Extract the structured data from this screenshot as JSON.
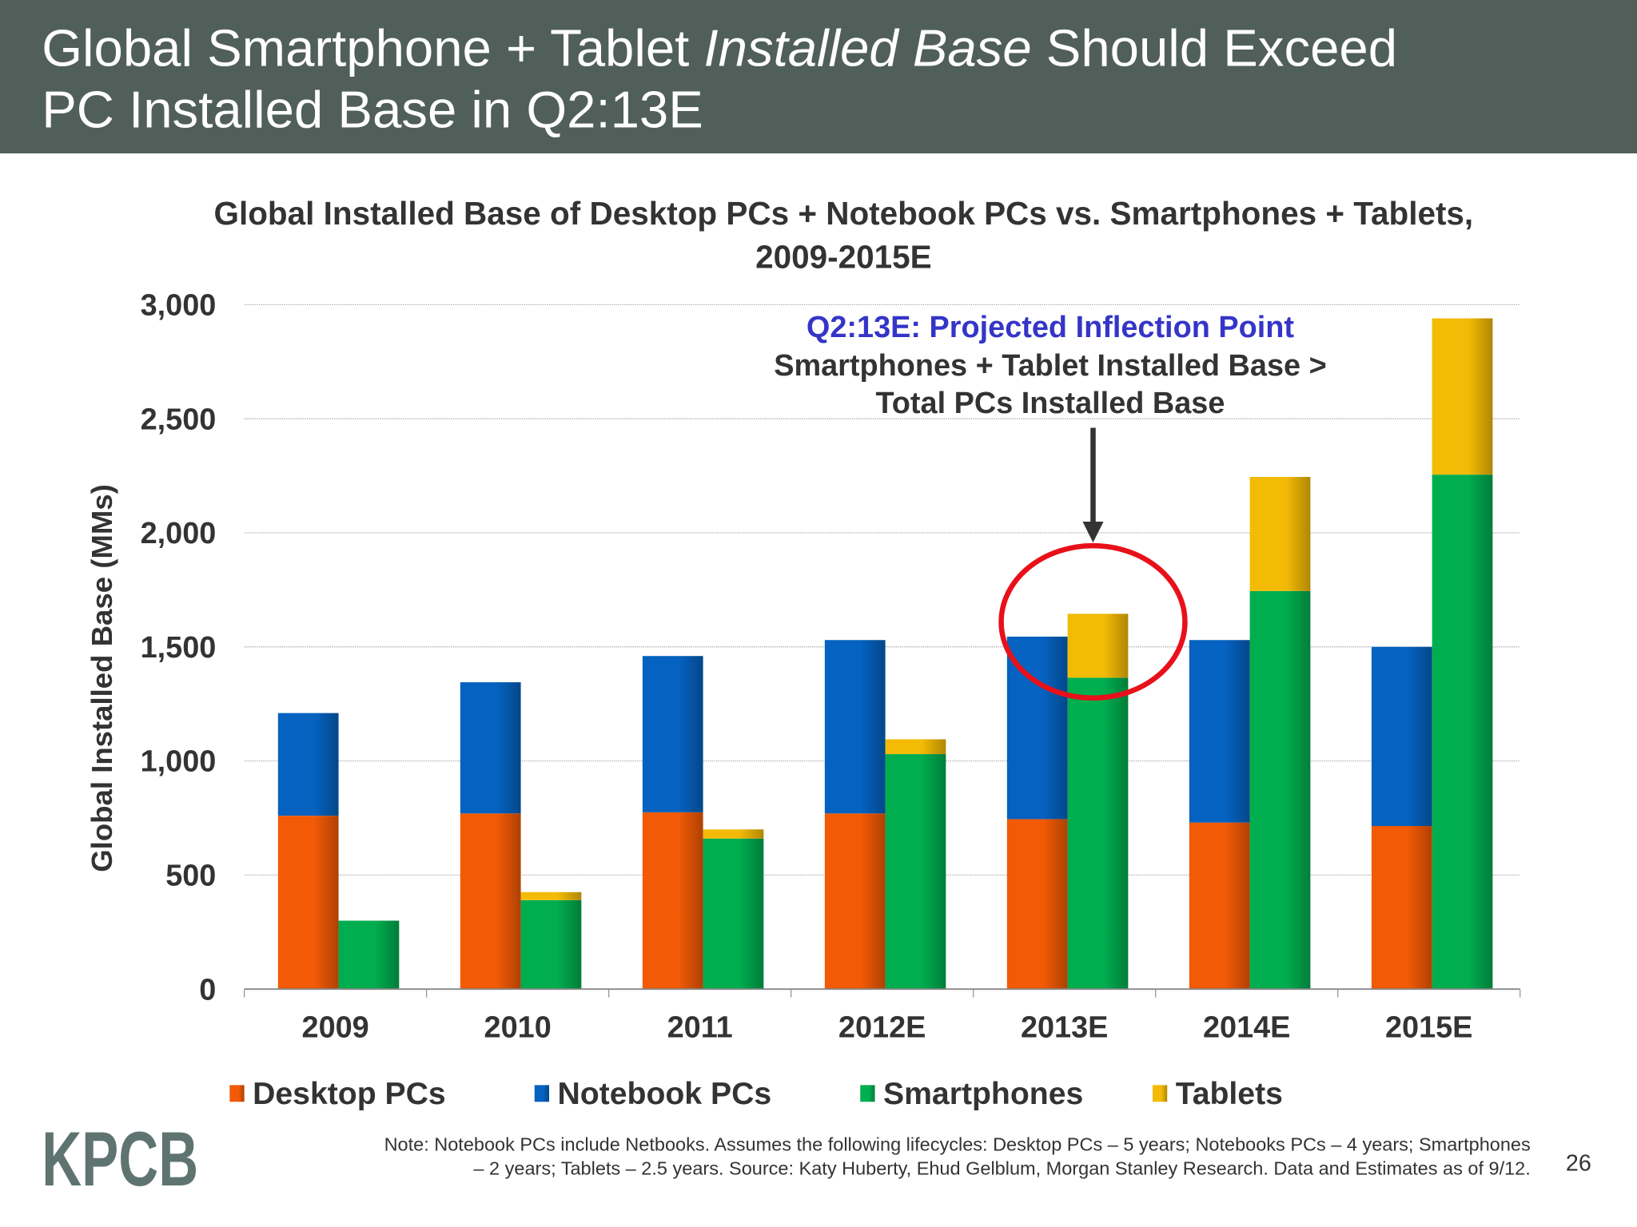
{
  "slide": {
    "title_line1_a": "Global Smartphone + Tablet ",
    "title_line1_b": "Installed Base",
    "title_line1_c": " Should Exceed",
    "title_line2": "PC Installed Base in Q2:13E",
    "logo": "KPCB",
    "page_number": "26",
    "note_line1": "Note: Notebook PCs include Netbooks. Assumes the following lifecycles: Desktop PCs – 5 years; Notebooks PCs – 4 years; Smartphones",
    "note_line2": "– 2 years; Tablets – 2.5 years. Source: Katy Huberty, Ehud Gelblum, Morgan Stanley Research. Data and Estimates as of 9/12.",
    "colors": {
      "title_bar": "#515f5b",
      "logo": "#5f7470",
      "annotation_highlight": "#3535c8",
      "circle": "#e8101a"
    }
  },
  "chart_data": {
    "type": "bar",
    "stacked_groups": true,
    "title_line1": "Global Installed Base of Desktop PCs + Notebook PCs vs. Smartphones + Tablets,",
    "title_line2": "2009-2015E",
    "ylabel": "Global Installed Base (MMs)",
    "xlabel": "",
    "ylim": [
      0,
      3000
    ],
    "yticks": [
      0,
      500,
      1000,
      1500,
      2000,
      2500,
      3000
    ],
    "ytick_labels": [
      "0",
      "500",
      "1,000",
      "1,500",
      "2,000",
      "2,500",
      "3,000"
    ],
    "grid": true,
    "legend_position": "bottom",
    "categories": [
      "2009",
      "2010",
      "2011",
      "2012E",
      "2013E",
      "2014E",
      "2015E"
    ],
    "stacks": [
      {
        "name": "PCs",
        "series": [
          "Desktop PCs",
          "Notebook PCs"
        ]
      },
      {
        "name": "Smartphones + Tablets",
        "series": [
          "Smartphones",
          "Tablets"
        ]
      }
    ],
    "series": [
      {
        "name": "Desktop PCs",
        "color": "#f25a05",
        "values": [
          760,
          770,
          775,
          770,
          745,
          730,
          715
        ]
      },
      {
        "name": "Notebook PCs",
        "color": "#0562c0",
        "values": [
          450,
          575,
          685,
          760,
          800,
          800,
          785
        ]
      },
      {
        "name": "Smartphones",
        "color": "#00ad4f",
        "values": [
          300,
          390,
          660,
          1030,
          1365,
          1745,
          2255
        ]
      },
      {
        "name": "Tablets",
        "color": "#f3bb05",
        "values": [
          0,
          35,
          40,
          65,
          280,
          500,
          685
        ]
      }
    ],
    "annotation": {
      "line1": "Q2:13E: Projected Inflection Point",
      "line2": "Smartphones + Tablet Installed Base >",
      "line3": "Total PCs Installed Base",
      "category": "2013E"
    }
  }
}
